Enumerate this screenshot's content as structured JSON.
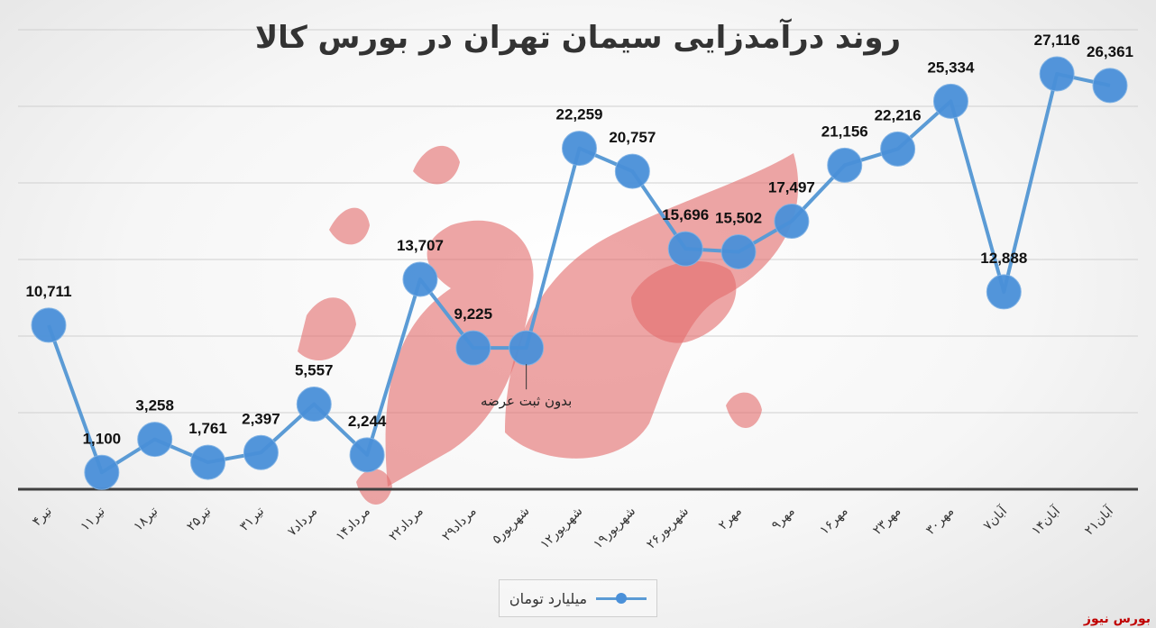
{
  "chart_data": {
    "type": "line",
    "title": "روند درآمدزایی سیمان تهران در بورس کالا",
    "categories": [
      "۴تیر",
      "۱۱تیر",
      "۱۸تیر",
      "۲۵تیر",
      "۳۱تیر",
      "۷مرداد",
      "۱۴مرداد",
      "۲۲مرداد",
      "۲۹مرداد",
      "۵شهریور",
      "۱۲شهریور",
      "۱۹شهریور",
      "۲۶شهریور",
      "۲مهر",
      "۹مهر",
      "۱۶مهر",
      "۲۳مهر",
      "۳۰مهر",
      "۷آبان",
      "۱۴آبان",
      "۲۱آبان"
    ],
    "series": [
      {
        "name": "میلیارد تومان",
        "values": [
          10711,
          1100,
          3258,
          1761,
          2397,
          5557,
          2244,
          13707,
          9225,
          9225,
          22259,
          20757,
          15696,
          15502,
          17497,
          21156,
          22216,
          25334,
          12888,
          27116,
          26361
        ],
        "labels": [
          "10,711",
          "1,100",
          "3,258",
          "1,761",
          "2,397",
          "5,557",
          "2,244",
          "13,707",
          "9,225",
          "",
          "22,259",
          "20,757",
          "15,696",
          "15,502",
          "17,497",
          "21,156",
          "22,216",
          "25,334",
          "12,888",
          "27,116",
          "26,361"
        ]
      }
    ],
    "ylim": [
      0,
      30000
    ],
    "grid": true,
    "legend": "bottom-center",
    "annotation": {
      "text": "بدون ثبت عرضه",
      "category_index": 9
    },
    "colors": {
      "series": "#5b9bd5",
      "marker": "#4a90d9",
      "axis": "#404040",
      "grid": "#d0d0d0"
    }
  },
  "watermark_text": "بورس نیوز",
  "source": "بورس نیوز"
}
